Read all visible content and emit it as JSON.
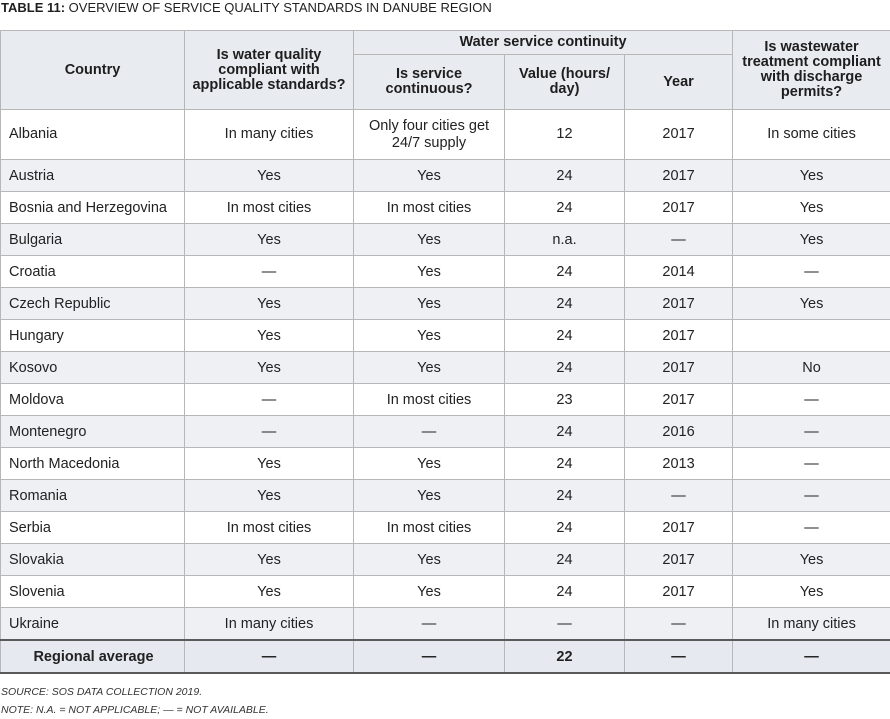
{
  "title": {
    "lead": "TABLE 11:",
    "rest": " OVERVIEW OF SERVICE QUALITY STANDARDS IN DANUBE REGION"
  },
  "header": {
    "country": "Country",
    "water_quality": "Is water quality compliant with applicable standards?",
    "continuity_group": "Water service continuity",
    "service_continuous": "Is service continuous?",
    "value_hours": "Value (hours/ day)",
    "year": "Year",
    "wastewater": "Is wastewater treatment compliant with discharge permits?"
  },
  "rows": [
    {
      "country": "Albania",
      "water_quality": "In many cities",
      "continuous": "Only four cities get 24/7 supply",
      "hours": "12",
      "year": "2017",
      "wastewater": "In some cities"
    },
    {
      "country": "Austria",
      "water_quality": "Yes",
      "continuous": "Yes",
      "hours": "24",
      "year": "2017",
      "wastewater": "Yes"
    },
    {
      "country": "Bosnia and Herzegovina",
      "water_quality": "In most cities",
      "continuous": "In most cities",
      "hours": "24",
      "year": "2017",
      "wastewater": "Yes"
    },
    {
      "country": "Bulgaria",
      "water_quality": "Yes",
      "continuous": "Yes",
      "hours": "n.a.",
      "year": "—",
      "wastewater": "Yes"
    },
    {
      "country": "Croatia",
      "water_quality": "—",
      "continuous": "Yes",
      "hours": "24",
      "year": "2014",
      "wastewater": "—"
    },
    {
      "country": "Czech Republic",
      "water_quality": "Yes",
      "continuous": "Yes",
      "hours": "24",
      "year": "2017",
      "wastewater": "Yes"
    },
    {
      "country": "Hungary",
      "water_quality": "Yes",
      "continuous": "Yes",
      "hours": "24",
      "year": "2017",
      "wastewater": ""
    },
    {
      "country": "Kosovo",
      "water_quality": "Yes",
      "continuous": "Yes",
      "hours": "24",
      "year": "2017",
      "wastewater": "No"
    },
    {
      "country": "Moldova",
      "water_quality": "—",
      "continuous": "In most cities",
      "hours": "23",
      "year": "2017",
      "wastewater": "—"
    },
    {
      "country": "Montenegro",
      "water_quality": "—",
      "continuous": "—",
      "hours": "24",
      "year": "2016",
      "wastewater": "—"
    },
    {
      "country": "North Macedonia",
      "water_quality": "Yes",
      "continuous": "Yes",
      "hours": "24",
      "year": "2013",
      "wastewater": "—"
    },
    {
      "country": "Romania",
      "water_quality": "Yes",
      "continuous": "Yes",
      "hours": "24",
      "year": "—",
      "wastewater": "—"
    },
    {
      "country": "Serbia",
      "water_quality": "In most cities",
      "continuous": "In most cities",
      "hours": "24",
      "year": "2017",
      "wastewater": "—"
    },
    {
      "country": "Slovakia",
      "water_quality": "Yes",
      "continuous": "Yes",
      "hours": "24",
      "year": "2017",
      "wastewater": "Yes"
    },
    {
      "country": "Slovenia",
      "water_quality": "Yes",
      "continuous": "Yes",
      "hours": "24",
      "year": "2017",
      "wastewater": "Yes"
    },
    {
      "country": "Ukraine",
      "water_quality": "In many cities",
      "continuous": "—",
      "hours": "—",
      "year": "—",
      "wastewater": "In many cities"
    }
  ],
  "average": {
    "country": "Regional average",
    "water_quality": "—",
    "continuous": "—",
    "hours": "22",
    "year": "—",
    "wastewater": "—"
  },
  "footnotes": {
    "source": "Source: SOS data collection 2019.",
    "note": "Note: n.a. = not applicable; — = not available."
  }
}
